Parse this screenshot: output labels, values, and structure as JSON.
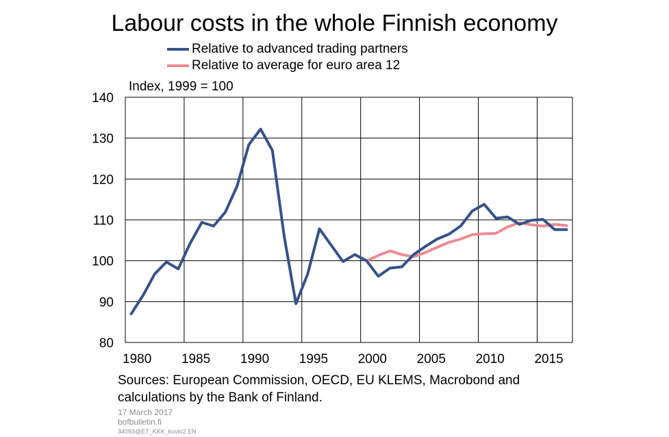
{
  "chart_data": {
    "type": "line",
    "title": "Labour costs in the whole Finnish economy",
    "ylabel": "Index, 1999 = 100",
    "xlabel": "",
    "xlim": [
      1979,
      2017
    ],
    "ylim": [
      80,
      140
    ],
    "yticks": [
      80,
      90,
      100,
      110,
      120,
      130,
      140
    ],
    "xticks": [
      1980,
      1985,
      1990,
      1995,
      2000,
      2005,
      2010,
      2015
    ],
    "grid": true,
    "legend_position": "top",
    "series": [
      {
        "name": "Relative to advanced trading partners",
        "color": "#365287",
        "x": [
          1979.5,
          1980.5,
          1981.5,
          1982.5,
          1983.5,
          1984.5,
          1985.5,
          1986.5,
          1987.5,
          1988.5,
          1989.5,
          1990.5,
          1991.5,
          1992.5,
          1993.5,
          1994.5,
          1995.5,
          1996.5,
          1997.5,
          1998.5,
          1999.5,
          2000.5,
          2001.5,
          2002.5,
          2003.5,
          2004.5,
          2005.5,
          2006.5,
          2007.5,
          2008.5,
          2009.5,
          2010.5,
          2011.5,
          2012.5,
          2013.5,
          2014.5,
          2015.5,
          2016.5
        ],
        "values": [
          87.0,
          91.5,
          96.8,
          99.7,
          98.0,
          104.2,
          109.4,
          108.5,
          111.9,
          118.3,
          128.4,
          132.2,
          127.0,
          106.0,
          89.5,
          96.8,
          107.8,
          103.8,
          99.8,
          101.5,
          100.0,
          96.2,
          98.2,
          98.5,
          101.5,
          103.5,
          105.3,
          106.5,
          108.5,
          112.2,
          113.8,
          110.4,
          110.7,
          108.9,
          109.9,
          110.1,
          107.6,
          107.6
        ]
      },
      {
        "name": "Relative to average for euro area 12",
        "color": "#eb8b94",
        "x": [
          1999.5,
          2000.5,
          2001.5,
          2002.5,
          2003.5,
          2004.5,
          2005.5,
          2006.5,
          2007.5,
          2008.5,
          2009.5,
          2010.5,
          2011.5,
          2012.5,
          2013.5,
          2014.5,
          2015.5,
          2016.5
        ],
        "values": [
          100.0,
          101.3,
          102.4,
          101.5,
          101.0,
          102.0,
          103.3,
          104.5,
          105.3,
          106.4,
          106.6,
          106.7,
          108.3,
          109.3,
          108.8,
          108.5,
          108.9,
          108.6
        ]
      }
    ]
  },
  "footer": {
    "sources": "Sources: European Commission, OECD, EU KLEMS, Macrobond and calculations by the Bank of Finland.",
    "date": "17 March 2017",
    "site": "bofbulletin.fi",
    "code": "34093@ET_KKK_kuvio2 EN"
  }
}
